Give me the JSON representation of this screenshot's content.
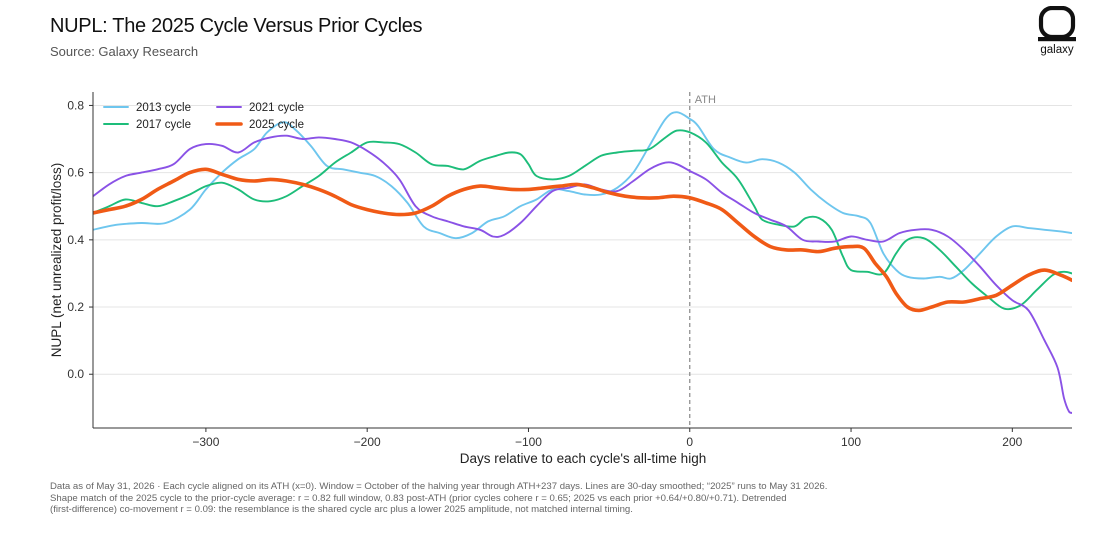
{
  "header": {
    "title": "NUPL: The 2025 Cycle Versus Prior Cycles",
    "subtitle": "Source: Galaxy Research",
    "logo_text": "galaxy"
  },
  "footnote": [
    "Data as of May 31, 2026 · Each cycle aligned on its ATH (x=0). Window = October of the halving year through ATH+237 days. Lines are 30-day smoothed; “2025” runs to May 31 2026.",
    "Shape match of the 2025 cycle to the prior-cycle average: r = 0.82 full window, 0.83 post-ATH (prior cycles cohere r = 0.65; 2025 vs each prior +0.64/+0.80/+0.71). Detrended",
    "(first-difference) co-movement r = 0.09: the resemblance is the shared cycle arc plus a lower 2025 amplitude, not matched internal timing."
  ],
  "chart_data": {
    "type": "line",
    "xlabel": "Days relative to each cycle's all-time high",
    "ylabel": "NUPL (net unrealized profit/loss)",
    "xlim": [
      -370,
      237
    ],
    "ylim": [
      -0.16,
      0.84
    ],
    "xticks": [
      -300,
      -200,
      -100,
      0,
      100,
      200
    ],
    "xtick_labels": [
      "−300",
      "−200",
      "−100",
      "0",
      "100",
      "200"
    ],
    "yticks": [
      0.0,
      0.2,
      0.4,
      0.6,
      0.8
    ],
    "ytick_labels": [
      "0.0",
      "0.2",
      "0.4",
      "0.6",
      "0.8"
    ],
    "grid": "horizontal",
    "legend": "top-left",
    "annotation": {
      "x": 0,
      "label": "ATH"
    },
    "series": [
      {
        "name": "2013 cycle",
        "color": "#6ec6ee",
        "points": [
          [
            -370,
            0.43
          ],
          [
            -355,
            0.445
          ],
          [
            -340,
            0.45
          ],
          [
            -325,
            0.45
          ],
          [
            -310,
            0.49
          ],
          [
            -300,
            0.55
          ],
          [
            -290,
            0.6
          ],
          [
            -280,
            0.64
          ],
          [
            -270,
            0.67
          ],
          [
            -262,
            0.72
          ],
          [
            -252,
            0.75
          ],
          [
            -245,
            0.73
          ],
          [
            -235,
            0.68
          ],
          [
            -225,
            0.62
          ],
          [
            -215,
            0.61
          ],
          [
            -205,
            0.6
          ],
          [
            -195,
            0.59
          ],
          [
            -185,
            0.56
          ],
          [
            -175,
            0.51
          ],
          [
            -165,
            0.44
          ],
          [
            -155,
            0.42
          ],
          [
            -145,
            0.405
          ],
          [
            -135,
            0.42
          ],
          [
            -125,
            0.455
          ],
          [
            -115,
            0.47
          ],
          [
            -105,
            0.5
          ],
          [
            -95,
            0.52
          ],
          [
            -85,
            0.55
          ],
          [
            -75,
            0.545
          ],
          [
            -65,
            0.535
          ],
          [
            -55,
            0.535
          ],
          [
            -45,
            0.555
          ],
          [
            -35,
            0.6
          ],
          [
            -25,
            0.68
          ],
          [
            -15,
            0.76
          ],
          [
            -8,
            0.78
          ],
          [
            0,
            0.76
          ],
          [
            5,
            0.74
          ],
          [
            15,
            0.67
          ],
          [
            25,
            0.645
          ],
          [
            35,
            0.63
          ],
          [
            45,
            0.64
          ],
          [
            55,
            0.63
          ],
          [
            65,
            0.6
          ],
          [
            75,
            0.55
          ],
          [
            85,
            0.51
          ],
          [
            95,
            0.48
          ],
          [
            105,
            0.47
          ],
          [
            112,
            0.45
          ],
          [
            120,
            0.36
          ],
          [
            128,
            0.31
          ],
          [
            135,
            0.29
          ],
          [
            145,
            0.285
          ],
          [
            155,
            0.29
          ],
          [
            162,
            0.285
          ],
          [
            170,
            0.31
          ],
          [
            180,
            0.36
          ],
          [
            190,
            0.41
          ],
          [
            200,
            0.44
          ],
          [
            210,
            0.435
          ],
          [
            220,
            0.43
          ],
          [
            230,
            0.425
          ],
          [
            237,
            0.42
          ]
        ]
      },
      {
        "name": "2017 cycle",
        "color": "#1dbd7a",
        "points": [
          [
            -370,
            0.48
          ],
          [
            -360,
            0.5
          ],
          [
            -350,
            0.52
          ],
          [
            -340,
            0.51
          ],
          [
            -330,
            0.5
          ],
          [
            -320,
            0.515
          ],
          [
            -310,
            0.535
          ],
          [
            -300,
            0.56
          ],
          [
            -290,
            0.57
          ],
          [
            -280,
            0.55
          ],
          [
            -270,
            0.52
          ],
          [
            -260,
            0.515
          ],
          [
            -250,
            0.53
          ],
          [
            -240,
            0.56
          ],
          [
            -230,
            0.59
          ],
          [
            -220,
            0.63
          ],
          [
            -210,
            0.66
          ],
          [
            -200,
            0.69
          ],
          [
            -190,
            0.69
          ],
          [
            -180,
            0.685
          ],
          [
            -170,
            0.66
          ],
          [
            -160,
            0.625
          ],
          [
            -150,
            0.62
          ],
          [
            -140,
            0.61
          ],
          [
            -130,
            0.635
          ],
          [
            -120,
            0.65
          ],
          [
            -112,
            0.66
          ],
          [
            -105,
            0.655
          ],
          [
            -100,
            0.625
          ],
          [
            -95,
            0.59
          ],
          [
            -85,
            0.58
          ],
          [
            -75,
            0.59
          ],
          [
            -65,
            0.62
          ],
          [
            -55,
            0.65
          ],
          [
            -45,
            0.66
          ],
          [
            -35,
            0.665
          ],
          [
            -25,
            0.67
          ],
          [
            -15,
            0.705
          ],
          [
            -8,
            0.725
          ],
          [
            0,
            0.72
          ],
          [
            10,
            0.69
          ],
          [
            20,
            0.63
          ],
          [
            30,
            0.58
          ],
          [
            40,
            0.5
          ],
          [
            45,
            0.46
          ],
          [
            55,
            0.445
          ],
          [
            65,
            0.44
          ],
          [
            72,
            0.465
          ],
          [
            80,
            0.465
          ],
          [
            88,
            0.43
          ],
          [
            95,
            0.35
          ],
          [
            100,
            0.31
          ],
          [
            110,
            0.305
          ],
          [
            120,
            0.3
          ],
          [
            128,
            0.36
          ],
          [
            135,
            0.4
          ],
          [
            145,
            0.405
          ],
          [
            155,
            0.37
          ],
          [
            165,
            0.32
          ],
          [
            175,
            0.27
          ],
          [
            185,
            0.23
          ],
          [
            195,
            0.195
          ],
          [
            205,
            0.205
          ],
          [
            215,
            0.25
          ],
          [
            225,
            0.295
          ],
          [
            232,
            0.305
          ],
          [
            237,
            0.3
          ]
        ]
      },
      {
        "name": "2021 cycle",
        "color": "#8a52e6",
        "points": [
          [
            -370,
            0.53
          ],
          [
            -360,
            0.565
          ],
          [
            -350,
            0.59
          ],
          [
            -340,
            0.6
          ],
          [
            -330,
            0.61
          ],
          [
            -320,
            0.625
          ],
          [
            -310,
            0.67
          ],
          [
            -300,
            0.685
          ],
          [
            -290,
            0.68
          ],
          [
            -280,
            0.66
          ],
          [
            -270,
            0.69
          ],
          [
            -260,
            0.705
          ],
          [
            -250,
            0.71
          ],
          [
            -240,
            0.7
          ],
          [
            -230,
            0.705
          ],
          [
            -220,
            0.7
          ],
          [
            -210,
            0.69
          ],
          [
            -200,
            0.665
          ],
          [
            -190,
            0.63
          ],
          [
            -180,
            0.58
          ],
          [
            -170,
            0.5
          ],
          [
            -160,
            0.47
          ],
          [
            -150,
            0.455
          ],
          [
            -140,
            0.44
          ],
          [
            -130,
            0.43
          ],
          [
            -122,
            0.41
          ],
          [
            -115,
            0.415
          ],
          [
            -105,
            0.45
          ],
          [
            -95,
            0.5
          ],
          [
            -85,
            0.545
          ],
          [
            -75,
            0.555
          ],
          [
            -65,
            0.565
          ],
          [
            -55,
            0.55
          ],
          [
            -45,
            0.545
          ],
          [
            -35,
            0.575
          ],
          [
            -25,
            0.61
          ],
          [
            -15,
            0.63
          ],
          [
            -8,
            0.625
          ],
          [
            0,
            0.605
          ],
          [
            10,
            0.58
          ],
          [
            20,
            0.54
          ],
          [
            30,
            0.51
          ],
          [
            40,
            0.48
          ],
          [
            50,
            0.46
          ],
          [
            60,
            0.44
          ],
          [
            70,
            0.4
          ],
          [
            80,
            0.395
          ],
          [
            90,
            0.395
          ],
          [
            100,
            0.41
          ],
          [
            110,
            0.4
          ],
          [
            120,
            0.395
          ],
          [
            130,
            0.42
          ],
          [
            140,
            0.43
          ],
          [
            150,
            0.43
          ],
          [
            160,
            0.41
          ],
          [
            170,
            0.37
          ],
          [
            180,
            0.32
          ],
          [
            190,
            0.265
          ],
          [
            200,
            0.22
          ],
          [
            210,
            0.19
          ],
          [
            220,
            0.1
          ],
          [
            228,
            0.02
          ],
          [
            232,
            -0.07
          ],
          [
            235,
            -0.11
          ],
          [
            237,
            -0.115
          ]
        ]
      },
      {
        "name": "2025 cycle",
        "color": "#f05a16",
        "bold": true,
        "points": [
          [
            -370,
            0.48
          ],
          [
            -360,
            0.49
          ],
          [
            -350,
            0.5
          ],
          [
            -340,
            0.52
          ],
          [
            -330,
            0.55
          ],
          [
            -320,
            0.575
          ],
          [
            -310,
            0.6
          ],
          [
            -300,
            0.61
          ],
          [
            -290,
            0.595
          ],
          [
            -280,
            0.58
          ],
          [
            -270,
            0.575
          ],
          [
            -260,
            0.58
          ],
          [
            -250,
            0.575
          ],
          [
            -240,
            0.565
          ],
          [
            -230,
            0.55
          ],
          [
            -220,
            0.53
          ],
          [
            -210,
            0.505
          ],
          [
            -200,
            0.49
          ],
          [
            -190,
            0.48
          ],
          [
            -180,
            0.475
          ],
          [
            -170,
            0.48
          ],
          [
            -160,
            0.5
          ],
          [
            -150,
            0.53
          ],
          [
            -140,
            0.55
          ],
          [
            -130,
            0.56
          ],
          [
            -120,
            0.555
          ],
          [
            -110,
            0.55
          ],
          [
            -100,
            0.55
          ],
          [
            -90,
            0.555
          ],
          [
            -80,
            0.56
          ],
          [
            -70,
            0.565
          ],
          [
            -60,
            0.555
          ],
          [
            -50,
            0.54
          ],
          [
            -40,
            0.53
          ],
          [
            -30,
            0.525
          ],
          [
            -20,
            0.525
          ],
          [
            -10,
            0.53
          ],
          [
            0,
            0.525
          ],
          [
            10,
            0.51
          ],
          [
            20,
            0.49
          ],
          [
            30,
            0.45
          ],
          [
            40,
            0.41
          ],
          [
            50,
            0.38
          ],
          [
            60,
            0.37
          ],
          [
            70,
            0.37
          ],
          [
            80,
            0.365
          ],
          [
            90,
            0.375
          ],
          [
            100,
            0.38
          ],
          [
            108,
            0.375
          ],
          [
            115,
            0.33
          ],
          [
            122,
            0.29
          ],
          [
            128,
            0.24
          ],
          [
            135,
            0.2
          ],
          [
            142,
            0.19
          ],
          [
            150,
            0.2
          ],
          [
            160,
            0.215
          ],
          [
            170,
            0.215
          ],
          [
            180,
            0.225
          ],
          [
            190,
            0.235
          ],
          [
            200,
            0.265
          ],
          [
            210,
            0.295
          ],
          [
            220,
            0.31
          ],
          [
            230,
            0.295
          ],
          [
            237,
            0.28
          ]
        ]
      }
    ]
  }
}
